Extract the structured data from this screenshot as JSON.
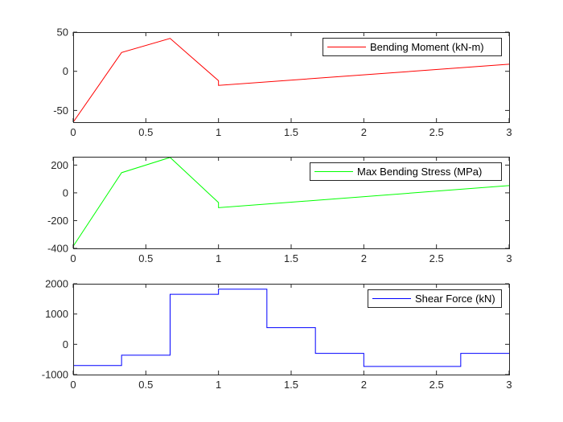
{
  "chart_data": [
    {
      "type": "line",
      "xlim": [
        0,
        3
      ],
      "ylim": [
        -65,
        50
      ],
      "xticks": [
        "0",
        "0.5",
        "1",
        "1.5",
        "2",
        "2.5",
        "3"
      ],
      "yticks": [
        "50",
        "0",
        "-50"
      ],
      "ytick_values": [
        50,
        0,
        -50
      ],
      "grid": false,
      "legend_placement": "top-right",
      "series": [
        {
          "name": "Bending Moment (kN-m)",
          "color": "#ff0000",
          "x": [
            0,
            0.333,
            0.667,
            1.0,
            1.0,
            3.0
          ],
          "y": [
            -65,
            24,
            42,
            -12,
            -18,
            9
          ]
        }
      ]
    },
    {
      "type": "line",
      "xlim": [
        0,
        3
      ],
      "ylim": [
        -400,
        260
      ],
      "xticks": [
        "0",
        "0.5",
        "1",
        "1.5",
        "2",
        "2.5",
        "3"
      ],
      "yticks": [
        "200",
        "0",
        "-200",
        "-400"
      ],
      "ytick_values": [
        200,
        0,
        -200,
        -400
      ],
      "grid": false,
      "legend_placement": "top-right",
      "series": [
        {
          "name": "Max Bending Stress (MPa)",
          "color": "#00ff00",
          "x": [
            0,
            0.333,
            0.667,
            1.0,
            1.0,
            3.0
          ],
          "y": [
            -385,
            145,
            255,
            -70,
            -107,
            52
          ]
        }
      ]
    },
    {
      "type": "line",
      "xlim": [
        0,
        3
      ],
      "ylim": [
        -1000,
        2000
      ],
      "xticks": [
        "0",
        "0.5",
        "1",
        "1.5",
        "2",
        "2.5",
        "3"
      ],
      "yticks": [
        "2000",
        "1000",
        "0",
        "-1000"
      ],
      "ytick_values": [
        2000,
        1000,
        0,
        -1000
      ],
      "grid": false,
      "legend_placement": "top-right",
      "series": [
        {
          "name": "Shear Force (kN)",
          "color": "#0000ff",
          "x": [
            0,
            0.333,
            0.333,
            0.667,
            0.667,
            1.0,
            1.0,
            1.333,
            1.333,
            1.667,
            1.667,
            2.0,
            2.0,
            2.667,
            2.667,
            3.0
          ],
          "y": [
            -700,
            -700,
            -360,
            -360,
            1650,
            1650,
            1820,
            1820,
            550,
            550,
            -300,
            -300,
            -730,
            -730,
            -300,
            -300
          ]
        }
      ]
    }
  ]
}
